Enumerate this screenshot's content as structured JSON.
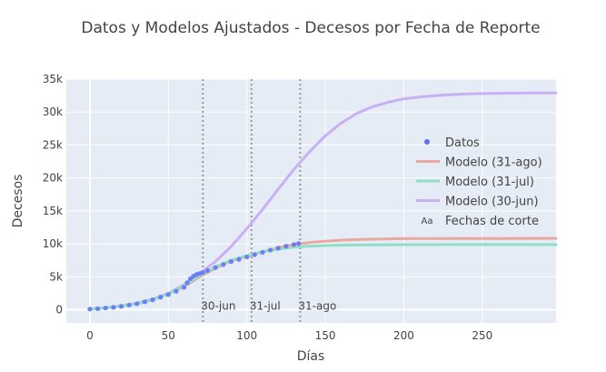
{
  "chart_data": {
    "type": "line",
    "title": "Datos y Modelos Ajustados - Decesos por Fecha de Reporte",
    "xlabel": "Días",
    "ylabel": "Decesos",
    "xlim": [
      -15,
      297
    ],
    "ylim": [
      -2000,
      35000
    ],
    "x_ticks": [
      0,
      50,
      100,
      150,
      200,
      250
    ],
    "x_tick_labels": [
      "0",
      "50",
      "100",
      "150",
      "200",
      "250"
    ],
    "y_ticks": [
      0,
      5000,
      10000,
      15000,
      20000,
      25000,
      30000,
      35000
    ],
    "y_tick_labels": [
      "0",
      "5k",
      "10k",
      "15k",
      "20k",
      "25k",
      "30k",
      "35k"
    ],
    "grid": true,
    "legend_position": "right",
    "series": [
      {
        "name": "Datos",
        "kind": "markers",
        "color": "#636efa",
        "x": [
          0,
          5,
          10,
          15,
          20,
          25,
          30,
          35,
          40,
          45,
          50,
          55,
          60,
          62,
          64,
          66,
          68,
          70,
          72,
          75,
          80,
          85,
          90,
          95,
          100,
          105,
          110,
          115,
          120,
          125,
          130,
          133
        ],
        "y": [
          100,
          150,
          250,
          350,
          500,
          700,
          900,
          1200,
          1500,
          1900,
          2300,
          2800,
          3400,
          4100,
          4700,
          5100,
          5350,
          5500,
          5650,
          5950,
          6400,
          6850,
          7300,
          7650,
          8000,
          8350,
          8700,
          9050,
          9350,
          9650,
          9900,
          10050
        ]
      },
      {
        "name": "Modelo (31-ago)",
        "kind": "line",
        "color": "#e9a9a0",
        "x": [
          0,
          10,
          20,
          30,
          40,
          50,
          60,
          70,
          80,
          90,
          100,
          110,
          120,
          130,
          140,
          150,
          160,
          170,
          180,
          190,
          200,
          220,
          240,
          260,
          280,
          297
        ],
        "y": [
          100,
          280,
          550,
          900,
          1500,
          2400,
          3500,
          5000,
          6300,
          7400,
          8100,
          8800,
          9400,
          9900,
          10200,
          10400,
          10550,
          10650,
          10700,
          10750,
          10780,
          10800,
          10810,
          10815,
          10820,
          10820
        ]
      },
      {
        "name": "Modelo (31-jul)",
        "kind": "line",
        "color": "#8fdfc8",
        "x": [
          0,
          10,
          20,
          30,
          40,
          50,
          60,
          70,
          80,
          90,
          100,
          110,
          120,
          130,
          140,
          150,
          160,
          170,
          180,
          200,
          220,
          240,
          260,
          280,
          297
        ],
        "y": [
          100,
          280,
          550,
          900,
          1500,
          2400,
          3600,
          5200,
          6500,
          7500,
          8200,
          8800,
          9200,
          9500,
          9650,
          9750,
          9800,
          9830,
          9850,
          9870,
          9880,
          9885,
          9890,
          9890,
          9890
        ]
      },
      {
        "name": "Modelo (30-jun)",
        "kind": "line",
        "color": "#c9b0f5",
        "x": [
          0,
          10,
          20,
          30,
          40,
          50,
          60,
          70,
          80,
          90,
          100,
          110,
          120,
          130,
          140,
          150,
          160,
          170,
          180,
          190,
          200,
          210,
          220,
          230,
          240,
          250,
          260,
          270,
          280,
          297
        ],
        "y": [
          100,
          300,
          600,
          1000,
          1600,
          2500,
          3800,
          5500,
          7300,
          9600,
          12300,
          15200,
          18300,
          21300,
          24000,
          26400,
          28300,
          29800,
          30800,
          31500,
          32000,
          32300,
          32500,
          32650,
          32750,
          32800,
          32850,
          32880,
          32900,
          32920
        ]
      }
    ],
    "cutoffs": {
      "legend_name": "Fechas de corte",
      "legend_symbol": "Aa",
      "color": "#999999",
      "items": [
        {
          "x": 72,
          "label": "30-jun"
        },
        {
          "x": 103,
          "label": "31-jul"
        },
        {
          "x": 134,
          "label": "31-ago"
        }
      ]
    }
  }
}
